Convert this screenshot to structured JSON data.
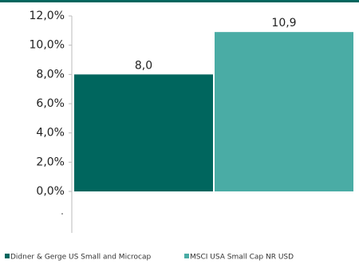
{
  "chart_data": {
    "type": "bar",
    "categories": [
      null
    ],
    "series": [
      {
        "name": "Didner & Gerge US Small and Microcap",
        "color": "#00665e",
        "values": [
          8.0
        ],
        "value_labels": [
          "8,0"
        ]
      },
      {
        "name": "MSCI USA Small Cap NR USD",
        "color": "#4aaca5",
        "values": [
          10.9
        ],
        "value_labels": [
          "10,9"
        ]
      }
    ],
    "ylim": [
      0,
      12
    ],
    "yticks": [
      {
        "value": 0,
        "label": "0,0%"
      },
      {
        "value": 2,
        "label": "2,0%"
      },
      {
        "value": 4,
        "label": "4,0%"
      },
      {
        "value": 6,
        "label": "6,0%"
      },
      {
        "value": 8,
        "label": "8,0%"
      },
      {
        "value": 10,
        "label": "10,0%"
      },
      {
        "value": 12,
        "label": "12,0%"
      }
    ],
    "legend": "bottom"
  }
}
